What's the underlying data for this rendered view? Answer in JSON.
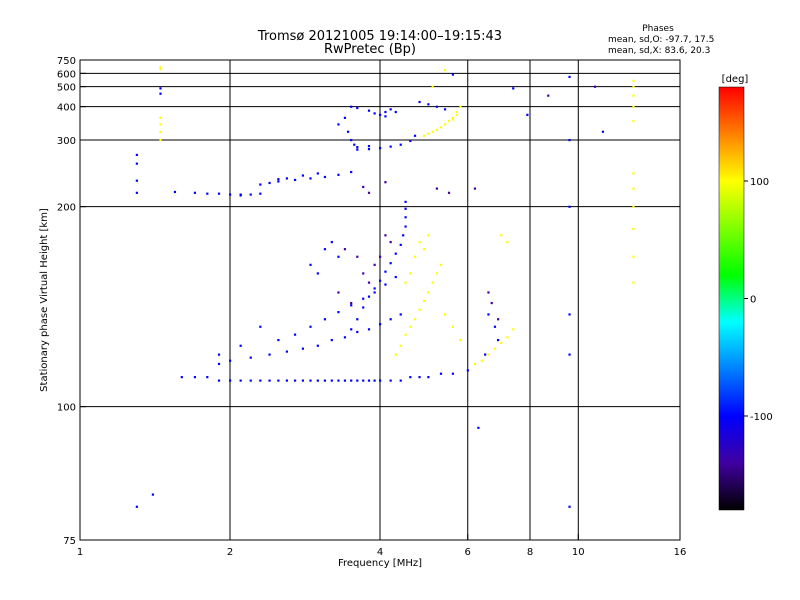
{
  "chart_data": {
    "type": "scatter",
    "title": "Tromsø 20121005 19:14:00–19:15:43",
    "subtitle": "RwPretec (Bp)",
    "xlabel": "Frequency [MHz]",
    "ylabel": "Stationary phase Virtual Height [km]",
    "x_scale": "log",
    "y_scale": "reciprocal",
    "xlim": [
      1,
      16
    ],
    "ylim": [
      75,
      750
    ],
    "x_ticks": [
      1,
      2,
      4,
      6,
      8,
      10,
      16
    ],
    "y_ticks": [
      75,
      100,
      200,
      300,
      400,
      500,
      600,
      750
    ],
    "x_grid": [
      2,
      4,
      6,
      8,
      10
    ],
    "y_grid": [
      100,
      200,
      300,
      400,
      500,
      600
    ],
    "info_box": {
      "heading": "Phases",
      "line1": "mean, sd,O: -97.7, 17.5",
      "line2": "mean, sd,X:  83.6, 20.3"
    },
    "colorbar": {
      "label": "[deg]",
      "range": [
        -180,
        180
      ],
      "ticks": [
        100,
        0,
        -100
      ],
      "colors": [
        "#ff0000",
        "#ff8000",
        "#ffff00",
        "#80ff00",
        "#00ff00",
        "#00ffff",
        "#0080ff",
        "#0000ff",
        "#4000a0",
        "#000000"
      ]
    },
    "series": [
      {
        "colormap": "phase",
        "phase": -100,
        "points": [
          [
            1.6,
            108
          ],
          [
            1.7,
            108
          ],
          [
            1.8,
            108
          ],
          [
            1.9,
            107
          ],
          [
            2.0,
            107
          ],
          [
            2.1,
            107
          ],
          [
            2.2,
            107
          ],
          [
            2.3,
            107
          ],
          [
            2.4,
            107
          ],
          [
            2.5,
            107
          ],
          [
            2.6,
            107
          ],
          [
            2.7,
            107
          ],
          [
            2.8,
            107
          ],
          [
            2.9,
            107
          ],
          [
            3.0,
            107
          ],
          [
            3.1,
            107
          ],
          [
            3.2,
            107
          ],
          [
            3.3,
            107
          ],
          [
            3.4,
            107
          ],
          [
            3.5,
            107
          ],
          [
            3.6,
            107
          ],
          [
            3.7,
            107
          ],
          [
            3.8,
            107
          ],
          [
            3.9,
            107
          ],
          [
            4.0,
            107
          ],
          [
            4.2,
            107
          ],
          [
            4.4,
            107
          ],
          [
            4.6,
            108
          ],
          [
            4.8,
            108
          ],
          [
            5.0,
            108
          ],
          [
            5.3,
            109
          ],
          [
            5.6,
            109
          ],
          [
            1.9,
            112
          ],
          [
            2.0,
            113
          ],
          [
            2.2,
            114
          ],
          [
            2.4,
            115
          ],
          [
            2.6,
            116
          ],
          [
            2.8,
            117
          ],
          [
            3.0,
            118
          ],
          [
            3.2,
            120
          ],
          [
            3.4,
            121
          ],
          [
            3.6,
            123
          ],
          [
            3.8,
            124
          ],
          [
            4.0,
            126
          ],
          [
            4.2,
            128
          ],
          [
            4.4,
            130
          ],
          [
            2.5,
            120
          ],
          [
            2.7,
            122
          ],
          [
            2.9,
            125
          ],
          [
            3.1,
            128
          ],
          [
            3.3,
            131
          ],
          [
            3.5,
            134
          ],
          [
            3.7,
            137
          ],
          [
            3.9,
            140
          ],
          [
            4.1,
            144
          ],
          [
            4.3,
            148
          ],
          [
            3.5,
            124
          ],
          [
            3.6,
            128
          ],
          [
            3.7,
            133
          ],
          [
            3.8,
            138
          ],
          [
            3.9,
            142
          ],
          [
            4.0,
            146
          ],
          [
            4.1,
            151
          ],
          [
            4.2,
            156
          ],
          [
            4.3,
            162
          ],
          [
            4.4,
            168
          ],
          [
            4.45,
            175
          ],
          [
            4.5,
            182
          ],
          [
            4.5,
            190
          ],
          [
            4.5,
            198
          ],
          [
            4.5,
            205
          ],
          [
            3.1,
            165
          ],
          [
            3.2,
            170
          ],
          [
            3.3,
            160
          ],
          [
            2.9,
            155
          ],
          [
            3.0,
            150
          ],
          [
            1.55,
            216
          ],
          [
            1.7,
            215
          ],
          [
            1.8,
            214
          ],
          [
            1.9,
            214
          ],
          [
            2.0,
            213
          ],
          [
            2.1,
            213
          ],
          [
            2.2,
            213
          ],
          [
            2.3,
            225
          ],
          [
            2.4,
            227
          ],
          [
            2.5,
            229
          ],
          [
            2.7,
            231
          ],
          [
            2.9,
            233
          ],
          [
            3.1,
            235
          ],
          [
            3.3,
            238
          ],
          [
            3.5,
            242
          ],
          [
            3.6,
            280
          ],
          [
            3.8,
            281
          ],
          [
            4.0,
            283
          ],
          [
            4.2,
            286
          ],
          [
            4.4,
            290
          ],
          [
            4.6,
            298
          ],
          [
            4.7,
            310
          ],
          [
            3.5,
            400
          ],
          [
            3.6,
            395
          ],
          [
            3.8,
            385
          ],
          [
            3.9,
            375
          ],
          [
            4.0,
            370
          ],
          [
            4.1,
            365
          ],
          [
            4.3,
            380
          ],
          [
            3.3,
            340
          ],
          [
            3.4,
            360
          ],
          [
            3.45,
            320
          ],
          [
            3.5,
            300
          ],
          [
            3.55,
            290
          ],
          [
            4.8,
            420
          ],
          [
            5.0,
            410
          ],
          [
            5.2,
            400
          ],
          [
            5.4,
            390
          ],
          [
            5.6,
            590
          ],
          [
            6.6,
            130
          ],
          [
            6.8,
            125
          ],
          [
            6.9,
            120
          ],
          [
            6.5,
            115
          ],
          [
            6.0,
            110
          ],
          [
            1.3,
            80
          ],
          [
            1.4,
            82
          ],
          [
            1.45,
            460
          ],
          [
            1.45,
            490
          ],
          [
            6.3,
            95
          ],
          [
            7.4,
            490
          ]
        ]
      },
      {
        "colormap": "phase",
        "phase": 100,
        "points": [
          [
            4.3,
            115
          ],
          [
            4.4,
            118
          ],
          [
            4.5,
            122
          ],
          [
            4.6,
            125
          ],
          [
            4.7,
            128
          ],
          [
            4.8,
            132
          ],
          [
            4.9,
            136
          ],
          [
            5.0,
            140
          ],
          [
            5.1,
            145
          ],
          [
            5.2,
            150
          ],
          [
            5.3,
            155
          ],
          [
            4.7,
            160
          ],
          [
            4.8,
            170
          ],
          [
            4.9,
            165
          ],
          [
            5.0,
            175
          ],
          [
            4.6,
            150
          ],
          [
            4.5,
            145
          ],
          [
            5.4,
            130
          ],
          [
            5.6,
            125
          ],
          [
            5.8,
            120
          ],
          [
            4.9,
            310
          ],
          [
            5.0,
            315
          ],
          [
            5.1,
            320
          ],
          [
            5.2,
            325
          ],
          [
            5.3,
            332
          ],
          [
            5.4,
            340
          ],
          [
            5.5,
            350
          ],
          [
            5.6,
            360
          ],
          [
            5.7,
            380
          ],
          [
            5.8,
            400
          ],
          [
            5.7,
            370
          ],
          [
            5.6,
            355
          ],
          [
            6.2,
            112
          ],
          [
            6.4,
            113
          ],
          [
            6.6,
            115
          ],
          [
            6.8,
            117
          ],
          [
            7.0,
            119
          ],
          [
            7.2,
            121
          ],
          [
            7.4,
            124
          ],
          [
            12.9,
            145
          ],
          [
            12.9,
            160
          ],
          [
            12.9,
            180
          ],
          [
            12.9,
            200
          ],
          [
            12.9,
            220
          ],
          [
            12.9,
            240
          ],
          [
            12.9,
            350
          ],
          [
            12.9,
            400
          ],
          [
            12.9,
            450
          ],
          [
            12.9,
            500
          ],
          [
            12.9,
            540
          ],
          [
            1.45,
            300
          ],
          [
            1.45,
            320
          ],
          [
            1.45,
            340
          ],
          [
            1.45,
            360
          ],
          [
            1.45,
            640
          ],
          [
            1.45,
            660
          ],
          [
            5.4,
            630
          ],
          [
            5.1,
            500
          ],
          [
            7.2,
            170
          ],
          [
            7.0,
            175
          ]
        ]
      },
      {
        "colormap": "phase",
        "phase": -80,
        "points": [
          [
            1.9,
            115
          ],
          [
            2.1,
            118
          ],
          [
            2.3,
            125
          ],
          [
            2.5,
            232
          ],
          [
            2.6,
            233
          ],
          [
            2.8,
            237
          ],
          [
            3.0,
            240
          ],
          [
            2.1,
            212
          ],
          [
            2.3,
            214
          ],
          [
            3.6,
            285
          ],
          [
            3.8,
            287
          ],
          [
            4.1,
            380
          ],
          [
            4.2,
            390
          ],
          [
            1.3,
            215
          ],
          [
            1.3,
            230
          ],
          [
            1.3,
            255
          ],
          [
            1.3,
            270
          ],
          [
            9.6,
            200
          ],
          [
            9.6,
            300
          ],
          [
            9.6,
            570
          ],
          [
            9.6,
            80
          ],
          [
            9.6,
            115
          ],
          [
            9.6,
            130
          ],
          [
            11.2,
            320
          ],
          [
            7.9,
            370
          ]
        ]
      },
      {
        "colormap": "phase",
        "phase": -130,
        "points": [
          [
            3.4,
            165
          ],
          [
            3.6,
            160
          ],
          [
            3.7,
            150
          ],
          [
            3.8,
            145
          ],
          [
            3.3,
            140
          ],
          [
            3.5,
            135
          ],
          [
            3.9,
            155
          ],
          [
            4.0,
            160
          ],
          [
            4.1,
            175
          ],
          [
            4.2,
            170
          ],
          [
            6.6,
            140
          ],
          [
            6.7,
            135
          ],
          [
            6.9,
            128
          ],
          [
            3.7,
            222
          ],
          [
            3.8,
            215
          ],
          [
            4.1,
            228
          ],
          [
            5.5,
            215
          ],
          [
            5.2,
            220
          ],
          [
            6.2,
            220
          ],
          [
            8.7,
            450
          ],
          [
            10.8,
            500
          ]
        ]
      }
    ]
  }
}
